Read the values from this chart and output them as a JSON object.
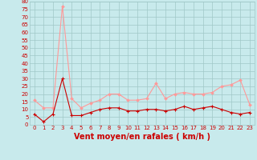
{
  "x": [
    0,
    1,
    2,
    3,
    4,
    5,
    6,
    7,
    8,
    9,
    10,
    11,
    12,
    13,
    14,
    15,
    16,
    17,
    18,
    19,
    20,
    21,
    22,
    23
  ],
  "y_mean": [
    7,
    2,
    7,
    30,
    6,
    6,
    8,
    10,
    11,
    11,
    9,
    9,
    10,
    10,
    9,
    10,
    12,
    10,
    11,
    12,
    10,
    8,
    7,
    8
  ],
  "y_gust": [
    16,
    11,
    11,
    77,
    17,
    11,
    14,
    16,
    20,
    20,
    16,
    16,
    17,
    27,
    17,
    20,
    21,
    20,
    20,
    21,
    25,
    26,
    29,
    13
  ],
  "bg_color": "#c8eaec",
  "grid_color": "#a0c8c8",
  "line_color_mean": "#cc0000",
  "line_color_gust": "#ff9999",
  "xlabel": "Vent moyen/en rafales ( km/h )",
  "ylim": [
    0,
    80
  ],
  "yticks": [
    0,
    5,
    10,
    15,
    20,
    25,
    30,
    35,
    40,
    45,
    50,
    55,
    60,
    65,
    70,
    75,
    80
  ],
  "xticks": [
    0,
    1,
    2,
    3,
    4,
    5,
    6,
    7,
    8,
    9,
    10,
    11,
    12,
    13,
    14,
    15,
    16,
    17,
    18,
    19,
    20,
    21,
    22,
    23
  ],
  "tick_fontsize": 5,
  "xlabel_fontsize": 7
}
